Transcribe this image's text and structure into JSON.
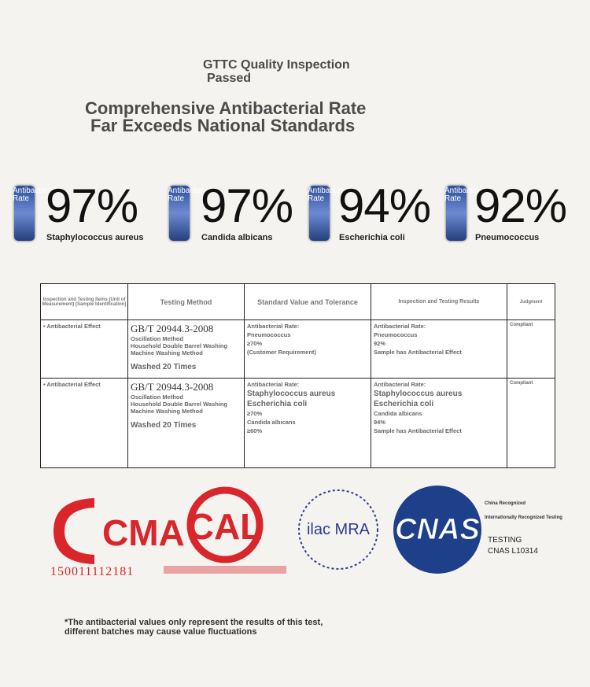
{
  "header": {
    "title_line1": "GTTC Quality Inspection",
    "title_line2": "Passed"
  },
  "headline": {
    "line1": "Comprehensive Antibacterial Rate",
    "line2": "Far Exceeds National Standards"
  },
  "stats": [
    {
      "tag": "Antibacterial Rate",
      "percent": "97%",
      "label": "Staphylococcus aureus"
    },
    {
      "tag": "Antibacterial Rate",
      "percent": "97%",
      "label": "Candida albicans"
    },
    {
      "tag": "Antibacterial Rate",
      "percent": "94%",
      "label": "Escherichia coli"
    },
    {
      "tag": "Antibacterial Rate",
      "percent": "92%",
      "label": "Pneumococcus"
    }
  ],
  "table": {
    "headers": [
      "Inspection and Testing Items (Unit of Measurement) [Sample Identification]",
      "Testing Method",
      "Standard Value and Tolerance",
      "Inspection and Testing Results",
      "Judgment"
    ],
    "rows": [
      {
        "item": "• Antibacterial Effect",
        "method": "GB/T 20944.3-2008",
        "method_detail": "Oscillation Method",
        "washing": "Household Double Barrel Washing Machine Washing Method",
        "times": "Washed 20 Times",
        "standard": [
          "Antibacterial Rate:",
          "Pneumococcus",
          "≥70%",
          "(Customer Requirement)"
        ],
        "result": [
          "Antibacterial Rate:",
          "Pneumococcus",
          "92%",
          "Sample has Antibacterial Effect"
        ],
        "judgment": "Compliant"
      },
      {
        "item": "• Antibacterial Effect",
        "method": "GB/T 20944.3-2008",
        "method_detail": "Oscillation Method",
        "washing": "Household Double Barrel Washing Machine Washing Method",
        "times": "Washed 20 Times",
        "standard": [
          "Antibacterial Rate:",
          "Staphylococcus aureus",
          "Escherichia coli",
          "≥70%",
          "Candida albicans",
          "≥60%"
        ],
        "result": [
          "Antibacterial Rate:",
          "Staphylococcus aureus",
          "Escherichia coli",
          "Candida albicans",
          "94%",
          "Sample has Antibacterial Effect"
        ],
        "judgment": "Compliant"
      }
    ]
  },
  "logos": {
    "cma": "CMA",
    "cma_number": "150011112181",
    "cal": "CAL",
    "ilac": "ilac MRA",
    "cnas": "CNAS",
    "cnas_note1": "China Recognized",
    "cnas_note2": "Internationally Recognized Testing",
    "cnas_testing": "TESTING",
    "cnas_code": "CNAS L10314"
  },
  "footnote": "*The antibacterial values only represent the results of this test, different batches may cause value fluctuations"
}
